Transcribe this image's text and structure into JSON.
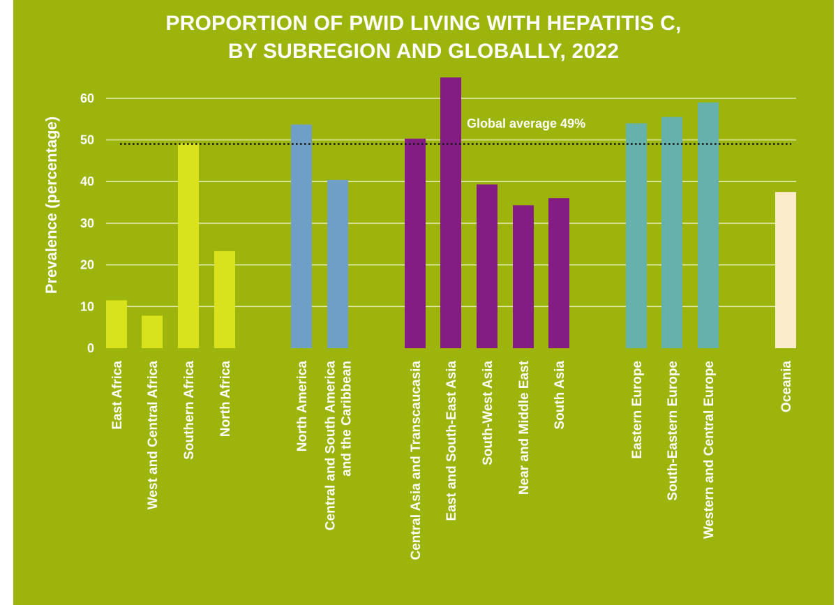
{
  "colors": {
    "background": "#9cb40c",
    "africa": "#d9e31c",
    "americas": "#6f9ec6",
    "asia": "#841d83",
    "europe": "#66b1ab",
    "oceania": "#fbeccb",
    "text": "#ffffff",
    "gridline": "#e4ecb2",
    "reference_line": "#1a1a1a"
  },
  "chart_data": {
    "type": "bar",
    "title": [
      "PROPORTION OF PWID LIVING WITH HEPATITIS C,",
      "BY SUBREGION AND GLOBALLY, 2022"
    ],
    "xlabel": "",
    "ylabel": "Prevalence (percentage)",
    "ylim": [
      0,
      65
    ],
    "yticks": [
      0,
      10,
      20,
      30,
      40,
      50,
      60
    ],
    "grid": true,
    "categories": [
      "East Africa",
      "West and Central Africa",
      "Southern Africa",
      "North Africa",
      "North America",
      [
        "Central and South America",
        "and the Caribbean"
      ],
      "Central Asia and  Transcaucasia",
      "East and South-East Asia",
      "South-West Asia",
      "Near and Middle East",
      "South Asia",
      "Eastern Europe",
      "South-Eastern Europe",
      "Western and Central Europe",
      "Oceania"
    ],
    "values": [
      11.5,
      7.8,
      49.2,
      23.3,
      53.7,
      40.4,
      50.3,
      65.0,
      39.3,
      34.3,
      36.0,
      54.0,
      55.5,
      59.0,
      37.5
    ],
    "bar_color_keys": [
      "africa",
      "africa",
      "africa",
      "africa",
      "americas",
      "americas",
      "asia",
      "asia",
      "asia",
      "asia",
      "asia",
      "europe",
      "europe",
      "europe",
      "oceania"
    ],
    "reference_line": {
      "value": 49,
      "label": "Global average 49%",
      "style": "dotted"
    }
  }
}
